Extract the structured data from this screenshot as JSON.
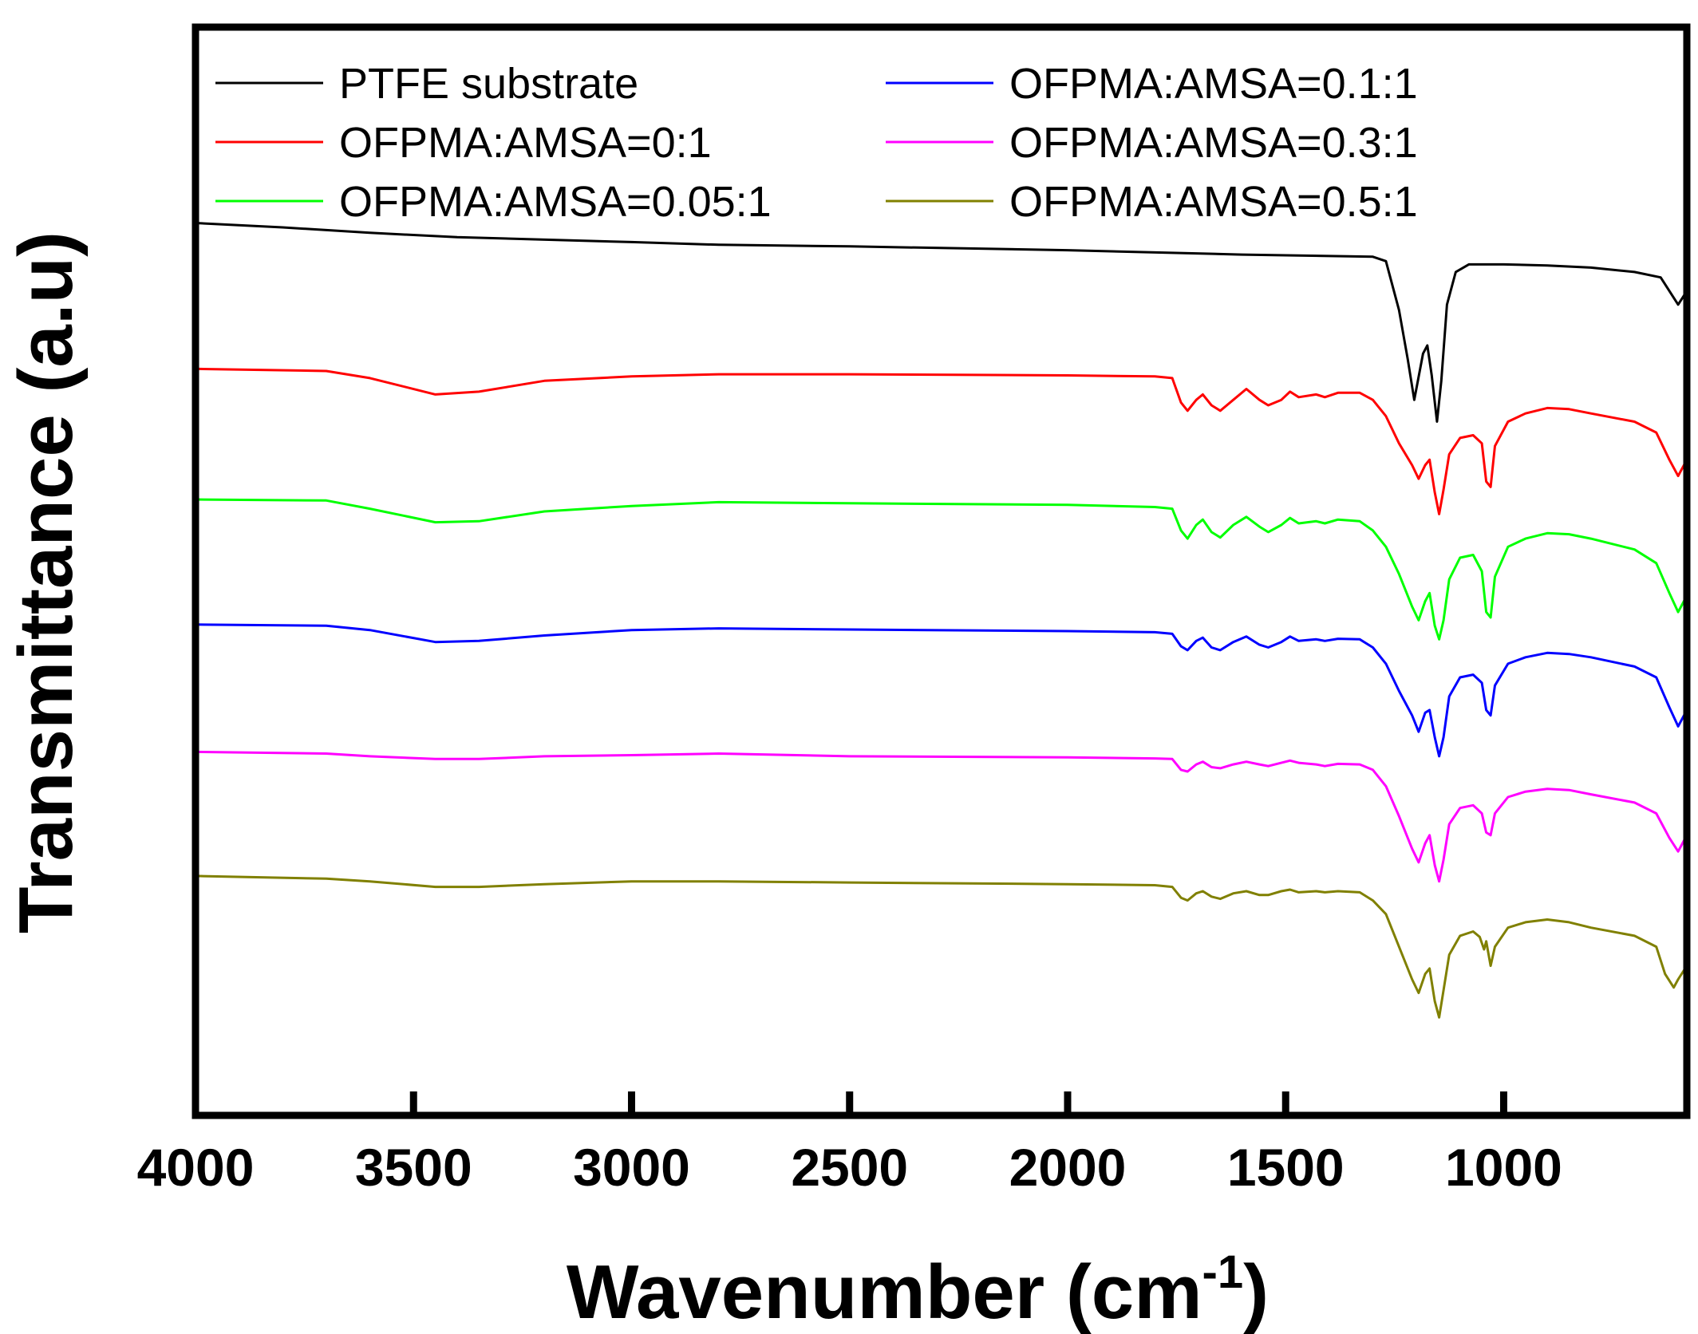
{
  "chart_data": {
    "type": "line",
    "title": "",
    "xlabel": "Wavenumber (cm",
    "xlabel_sup": "-1",
    "xlabel_close": ")",
    "ylabel": "Transmittance (a.u)",
    "x_reversed": true,
    "xlim": [
      4000,
      580
    ],
    "ylim": [
      0,
      20
    ],
    "x_ticks": [
      4000,
      3500,
      3000,
      2500,
      2000,
      1500,
      1000
    ],
    "x_tick_labels": [
      "4000",
      "3500",
      "3000",
      "2500",
      "2000",
      "1500",
      "1000"
    ],
    "legend_position": "top",
    "series": [
      {
        "name": "PTFE substrate",
        "color": "#000000",
        "points": [
          [
            4000,
            16.4
          ],
          [
            3800,
            16.32
          ],
          [
            3600,
            16.22
          ],
          [
            3400,
            16.14
          ],
          [
            3000,
            16.05
          ],
          [
            2800,
            16.0
          ],
          [
            2500,
            15.97
          ],
          [
            2000,
            15.9
          ],
          [
            1600,
            15.82
          ],
          [
            1300,
            15.78
          ],
          [
            1270,
            15.7
          ],
          [
            1240,
            14.8
          ],
          [
            1220,
            13.9
          ],
          [
            1205,
            13.15
          ],
          [
            1185,
            14.0
          ],
          [
            1175,
            14.15
          ],
          [
            1165,
            13.6
          ],
          [
            1153,
            12.75
          ],
          [
            1143,
            13.5
          ],
          [
            1130,
            14.9
          ],
          [
            1110,
            15.5
          ],
          [
            1080,
            15.64
          ],
          [
            1000,
            15.64
          ],
          [
            900,
            15.62
          ],
          [
            800,
            15.58
          ],
          [
            700,
            15.5
          ],
          [
            640,
            15.4
          ],
          [
            600,
            14.9
          ],
          [
            580,
            15.15
          ]
        ]
      },
      {
        "name": "OFPMA:AMSA=0:1",
        "color": "#ff0000",
        "points": [
          [
            4000,
            13.72
          ],
          [
            3700,
            13.68
          ],
          [
            3600,
            13.55
          ],
          [
            3450,
            13.25
          ],
          [
            3350,
            13.3
          ],
          [
            3200,
            13.5
          ],
          [
            3000,
            13.58
          ],
          [
            2800,
            13.62
          ],
          [
            2500,
            13.62
          ],
          [
            2000,
            13.6
          ],
          [
            1800,
            13.58
          ],
          [
            1760,
            13.55
          ],
          [
            1740,
            13.1
          ],
          [
            1725,
            12.95
          ],
          [
            1705,
            13.15
          ],
          [
            1690,
            13.25
          ],
          [
            1670,
            13.05
          ],
          [
            1650,
            12.95
          ],
          [
            1620,
            13.15
          ],
          [
            1590,
            13.35
          ],
          [
            1560,
            13.15
          ],
          [
            1540,
            13.05
          ],
          [
            1510,
            13.15
          ],
          [
            1490,
            13.3
          ],
          [
            1470,
            13.2
          ],
          [
            1430,
            13.25
          ],
          [
            1410,
            13.2
          ],
          [
            1380,
            13.28
          ],
          [
            1330,
            13.28
          ],
          [
            1300,
            13.15
          ],
          [
            1270,
            12.85
          ],
          [
            1240,
            12.35
          ],
          [
            1210,
            11.95
          ],
          [
            1195,
            11.7
          ],
          [
            1180,
            11.95
          ],
          [
            1170,
            12.05
          ],
          [
            1158,
            11.45
          ],
          [
            1148,
            11.05
          ],
          [
            1138,
            11.5
          ],
          [
            1125,
            12.15
          ],
          [
            1100,
            12.45
          ],
          [
            1070,
            12.5
          ],
          [
            1050,
            12.35
          ],
          [
            1040,
            11.65
          ],
          [
            1030,
            11.55
          ],
          [
            1020,
            12.3
          ],
          [
            990,
            12.75
          ],
          [
            950,
            12.9
          ],
          [
            900,
            13.0
          ],
          [
            850,
            12.98
          ],
          [
            800,
            12.9
          ],
          [
            700,
            12.75
          ],
          [
            650,
            12.55
          ],
          [
            620,
            12.05
          ],
          [
            600,
            11.75
          ],
          [
            580,
            12.05
          ]
        ]
      },
      {
        "name": "OFPMA:AMSA=0.05:1",
        "color": "#00ff00",
        "points": [
          [
            4000,
            11.32
          ],
          [
            3700,
            11.3
          ],
          [
            3600,
            11.15
          ],
          [
            3450,
            10.9
          ],
          [
            3350,
            10.92
          ],
          [
            3200,
            11.1
          ],
          [
            3000,
            11.2
          ],
          [
            2800,
            11.27
          ],
          [
            2500,
            11.25
          ],
          [
            2000,
            11.22
          ],
          [
            1800,
            11.18
          ],
          [
            1760,
            11.15
          ],
          [
            1740,
            10.75
          ],
          [
            1725,
            10.6
          ],
          [
            1705,
            10.85
          ],
          [
            1690,
            10.95
          ],
          [
            1670,
            10.72
          ],
          [
            1650,
            10.62
          ],
          [
            1620,
            10.85
          ],
          [
            1590,
            11.0
          ],
          [
            1560,
            10.82
          ],
          [
            1540,
            10.72
          ],
          [
            1510,
            10.85
          ],
          [
            1490,
            10.98
          ],
          [
            1470,
            10.88
          ],
          [
            1430,
            10.92
          ],
          [
            1410,
            10.88
          ],
          [
            1380,
            10.95
          ],
          [
            1330,
            10.92
          ],
          [
            1300,
            10.75
          ],
          [
            1270,
            10.45
          ],
          [
            1240,
            9.95
          ],
          [
            1210,
            9.35
          ],
          [
            1195,
            9.1
          ],
          [
            1180,
            9.45
          ],
          [
            1170,
            9.6
          ],
          [
            1158,
            9.0
          ],
          [
            1148,
            8.75
          ],
          [
            1138,
            9.1
          ],
          [
            1125,
            9.85
          ],
          [
            1100,
            10.25
          ],
          [
            1070,
            10.3
          ],
          [
            1050,
            10.0
          ],
          [
            1040,
            9.25
          ],
          [
            1030,
            9.15
          ],
          [
            1020,
            9.9
          ],
          [
            990,
            10.45
          ],
          [
            950,
            10.6
          ],
          [
            900,
            10.7
          ],
          [
            850,
            10.68
          ],
          [
            800,
            10.6
          ],
          [
            700,
            10.4
          ],
          [
            650,
            10.15
          ],
          [
            620,
            9.6
          ],
          [
            600,
            9.25
          ],
          [
            580,
            9.55
          ]
        ]
      },
      {
        "name": "OFPMA:AMSA=0.1:1",
        "color": "#0000ff",
        "points": [
          [
            4000,
            9.02
          ],
          [
            3700,
            9.0
          ],
          [
            3600,
            8.92
          ],
          [
            3450,
            8.7
          ],
          [
            3350,
            8.72
          ],
          [
            3200,
            8.82
          ],
          [
            3000,
            8.92
          ],
          [
            2800,
            8.95
          ],
          [
            2500,
            8.93
          ],
          [
            2000,
            8.9
          ],
          [
            1800,
            8.88
          ],
          [
            1760,
            8.85
          ],
          [
            1740,
            8.62
          ],
          [
            1725,
            8.55
          ],
          [
            1705,
            8.72
          ],
          [
            1690,
            8.78
          ],
          [
            1670,
            8.6
          ],
          [
            1650,
            8.55
          ],
          [
            1620,
            8.7
          ],
          [
            1590,
            8.8
          ],
          [
            1560,
            8.65
          ],
          [
            1540,
            8.6
          ],
          [
            1510,
            8.7
          ],
          [
            1490,
            8.8
          ],
          [
            1470,
            8.72
          ],
          [
            1430,
            8.75
          ],
          [
            1410,
            8.72
          ],
          [
            1380,
            8.76
          ],
          [
            1330,
            8.75
          ],
          [
            1300,
            8.6
          ],
          [
            1270,
            8.3
          ],
          [
            1240,
            7.8
          ],
          [
            1210,
            7.35
          ],
          [
            1195,
            7.05
          ],
          [
            1180,
            7.4
          ],
          [
            1170,
            7.45
          ],
          [
            1158,
            6.95
          ],
          [
            1148,
            6.6
          ],
          [
            1138,
            6.95
          ],
          [
            1125,
            7.7
          ],
          [
            1100,
            8.05
          ],
          [
            1070,
            8.1
          ],
          [
            1050,
            7.95
          ],
          [
            1040,
            7.45
          ],
          [
            1030,
            7.35
          ],
          [
            1020,
            7.9
          ],
          [
            990,
            8.3
          ],
          [
            950,
            8.42
          ],
          [
            900,
            8.5
          ],
          [
            850,
            8.48
          ],
          [
            800,
            8.42
          ],
          [
            700,
            8.25
          ],
          [
            650,
            8.05
          ],
          [
            620,
            7.5
          ],
          [
            600,
            7.15
          ],
          [
            580,
            7.45
          ]
        ]
      },
      {
        "name": "OFPMA:AMSA=0.3:1",
        "color": "#ff00ff",
        "points": [
          [
            4000,
            6.68
          ],
          [
            3700,
            6.65
          ],
          [
            3600,
            6.6
          ],
          [
            3450,
            6.55
          ],
          [
            3350,
            6.55
          ],
          [
            3200,
            6.6
          ],
          [
            3000,
            6.62
          ],
          [
            2800,
            6.65
          ],
          [
            2500,
            6.6
          ],
          [
            2000,
            6.58
          ],
          [
            1800,
            6.56
          ],
          [
            1760,
            6.55
          ],
          [
            1740,
            6.35
          ],
          [
            1725,
            6.32
          ],
          [
            1705,
            6.45
          ],
          [
            1690,
            6.5
          ],
          [
            1670,
            6.4
          ],
          [
            1650,
            6.38
          ],
          [
            1620,
            6.45
          ],
          [
            1590,
            6.5
          ],
          [
            1560,
            6.45
          ],
          [
            1540,
            6.42
          ],
          [
            1510,
            6.48
          ],
          [
            1490,
            6.52
          ],
          [
            1470,
            6.48
          ],
          [
            1430,
            6.45
          ],
          [
            1410,
            6.42
          ],
          [
            1380,
            6.46
          ],
          [
            1330,
            6.45
          ],
          [
            1300,
            6.35
          ],
          [
            1270,
            6.05
          ],
          [
            1240,
            5.5
          ],
          [
            1210,
            4.9
          ],
          [
            1195,
            4.65
          ],
          [
            1180,
            5.0
          ],
          [
            1170,
            5.15
          ],
          [
            1158,
            4.6
          ],
          [
            1148,
            4.3
          ],
          [
            1138,
            4.7
          ],
          [
            1125,
            5.35
          ],
          [
            1100,
            5.65
          ],
          [
            1070,
            5.7
          ],
          [
            1050,
            5.55
          ],
          [
            1040,
            5.2
          ],
          [
            1030,
            5.15
          ],
          [
            1020,
            5.55
          ],
          [
            990,
            5.85
          ],
          [
            950,
            5.95
          ],
          [
            900,
            6.0
          ],
          [
            850,
            5.98
          ],
          [
            800,
            5.9
          ],
          [
            700,
            5.75
          ],
          [
            650,
            5.55
          ],
          [
            620,
            5.1
          ],
          [
            600,
            4.85
          ],
          [
            580,
            5.15
          ]
        ]
      },
      {
        "name": "OFPMA:AMSA=0.5:1",
        "color": "#808000",
        "points": [
          [
            4000,
            4.4
          ],
          [
            3700,
            4.35
          ],
          [
            3600,
            4.3
          ],
          [
            3450,
            4.2
          ],
          [
            3350,
            4.2
          ],
          [
            3200,
            4.25
          ],
          [
            3000,
            4.3
          ],
          [
            2800,
            4.3
          ],
          [
            2500,
            4.28
          ],
          [
            2000,
            4.25
          ],
          [
            1800,
            4.23
          ],
          [
            1760,
            4.2
          ],
          [
            1740,
            4.0
          ],
          [
            1725,
            3.95
          ],
          [
            1705,
            4.08
          ],
          [
            1690,
            4.12
          ],
          [
            1670,
            4.02
          ],
          [
            1650,
            3.98
          ],
          [
            1620,
            4.08
          ],
          [
            1590,
            4.12
          ],
          [
            1560,
            4.05
          ],
          [
            1540,
            4.05
          ],
          [
            1510,
            4.12
          ],
          [
            1490,
            4.15
          ],
          [
            1470,
            4.1
          ],
          [
            1430,
            4.12
          ],
          [
            1410,
            4.1
          ],
          [
            1380,
            4.12
          ],
          [
            1330,
            4.1
          ],
          [
            1300,
            3.95
          ],
          [
            1270,
            3.7
          ],
          [
            1240,
            3.1
          ],
          [
            1210,
            2.5
          ],
          [
            1195,
            2.25
          ],
          [
            1180,
            2.6
          ],
          [
            1170,
            2.7
          ],
          [
            1158,
            2.1
          ],
          [
            1148,
            1.8
          ],
          [
            1138,
            2.3
          ],
          [
            1125,
            2.95
          ],
          [
            1100,
            3.3
          ],
          [
            1070,
            3.38
          ],
          [
            1055,
            3.28
          ],
          [
            1045,
            3.05
          ],
          [
            1040,
            3.2
          ],
          [
            1030,
            2.75
          ],
          [
            1020,
            3.1
          ],
          [
            990,
            3.45
          ],
          [
            950,
            3.55
          ],
          [
            900,
            3.6
          ],
          [
            850,
            3.55
          ],
          [
            800,
            3.45
          ],
          [
            700,
            3.3
          ],
          [
            650,
            3.1
          ],
          [
            630,
            2.6
          ],
          [
            610,
            2.35
          ],
          [
            600,
            2.5
          ],
          [
            580,
            2.75
          ]
        ]
      }
    ]
  }
}
